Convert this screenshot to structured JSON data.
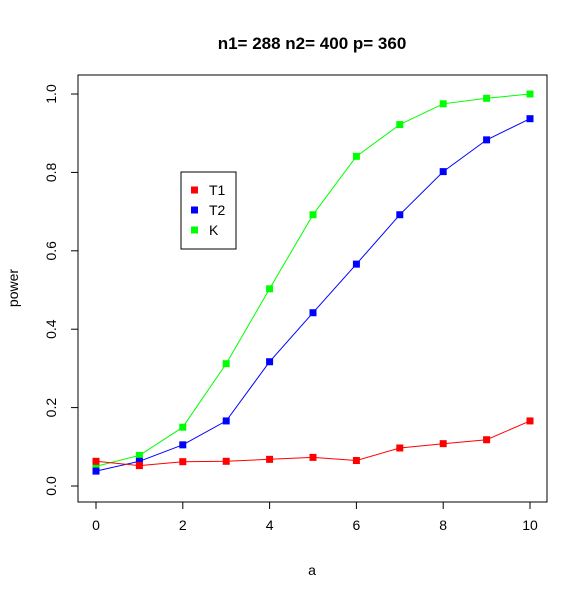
{
  "chart_data": {
    "type": "line",
    "title": "n1= 288 n2= 400 p= 360",
    "xlabel": "a",
    "ylabel": "power",
    "xlim": [
      0,
      10
    ],
    "ylim": [
      0,
      1
    ],
    "x_ticks": [
      "0",
      "2",
      "4",
      "6",
      "8",
      "10"
    ],
    "y_ticks": [
      "0.0",
      "0.2",
      "0.4",
      "0.6",
      "0.8",
      "1.0"
    ],
    "grid": false,
    "legend_position": "upper-left-center",
    "x": [
      0,
      1,
      2,
      3,
      4,
      5,
      6,
      7,
      8,
      9,
      10
    ],
    "series": [
      {
        "name": "T1",
        "color": "#ff0000",
        "values": [
          0.063,
          0.052,
          0.062,
          0.063,
          0.068,
          0.073,
          0.065,
          0.097,
          0.108,
          0.118,
          0.166
        ]
      },
      {
        "name": "T2",
        "color": "#0000ff",
        "values": [
          0.038,
          0.063,
          0.105,
          0.166,
          0.317,
          0.442,
          0.566,
          0.692,
          0.802,
          0.883,
          0.937
        ]
      },
      {
        "name": "K",
        "color": "#00ff00",
        "values": [
          0.05,
          0.078,
          0.15,
          0.312,
          0.503,
          0.692,
          0.841,
          0.922,
          0.975,
          0.989,
          1.0
        ]
      }
    ]
  }
}
